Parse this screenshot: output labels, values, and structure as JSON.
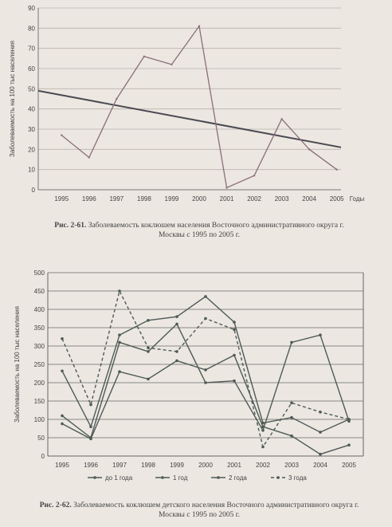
{
  "chart_data": [
    {
      "type": "line",
      "ylabel": "Заболеваемость на 100 тыс населения",
      "xlabel": "Годы",
      "x": [
        "1995",
        "1996",
        "1997",
        "1998",
        "1999",
        "2000",
        "2001",
        "2002",
        "2003",
        "2004",
        "2005"
      ],
      "ylim": [
        0,
        90
      ],
      "yticks": [
        0,
        10,
        20,
        30,
        40,
        50,
        60,
        70,
        80,
        90
      ],
      "grid": true,
      "series": [
        {
          "values": [
            27,
            16,
            45,
            66,
            62,
            81,
            1,
            7,
            35,
            20,
            10
          ],
          "color": "#8a6f7a"
        }
      ],
      "trend": {
        "start": 49,
        "end": 21,
        "color": "#4a4a52"
      },
      "caption_prefix": "Рис. 2-61.",
      "caption": "Заболеваемость коклюшем населения Восточного административного округа г. Москвы с 1995 по 2005 г."
    },
    {
      "type": "line",
      "ylabel": "Заболеваемость на 100 тыс населения",
      "x": [
        "1995",
        "1996",
        "1997",
        "1998",
        "1999",
        "2000",
        "2001",
        "2002",
        "2003",
        "2004",
        "2005"
      ],
      "ylim": [
        0,
        500
      ],
      "yticks": [
        0,
        50,
        100,
        150,
        200,
        250,
        300,
        350,
        400,
        450,
        500
      ],
      "grid": true,
      "series": [
        {
          "name": "до 1 года",
          "values": [
            110,
            50,
            310,
            285,
            360,
            200,
            205,
            70,
            310,
            330,
            95
          ],
          "dash": "",
          "marker": true
        },
        {
          "name": "1 год",
          "values": [
            88,
            47,
            230,
            210,
            260,
            235,
            275,
            80,
            55,
            5,
            30
          ],
          "dash": "",
          "marker": true
        },
        {
          "name": "2 года",
          "values": [
            232,
            80,
            330,
            370,
            380,
            435,
            365,
            90,
            105,
            65,
            100
          ],
          "dash": "",
          "marker": true
        },
        {
          "name": "3 года",
          "values": [
            320,
            140,
            450,
            295,
            285,
            375,
            345,
            25,
            145,
            120,
            100
          ],
          "dash": "4,3",
          "marker": true
        }
      ],
      "caption_prefix": "Рис. 2-62.",
      "caption": "Заболеваемость коклюшем детского населения Восточного административного округа г. Москвы с 1995 по 2005 г."
    }
  ]
}
